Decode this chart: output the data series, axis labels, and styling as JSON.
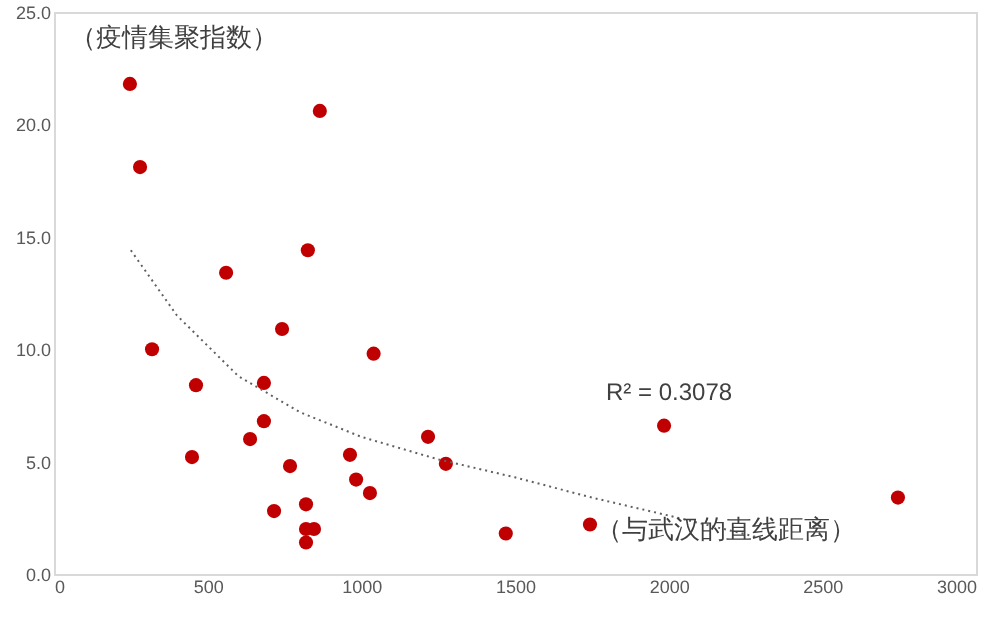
{
  "chart_data": {
    "type": "scatter",
    "xlabel": "（与武汉的直线距离）",
    "ylabel": "（疫情集聚指数）",
    "annotations": [
      "R² = 0.3078"
    ],
    "xlim": [
      0,
      3000
    ],
    "xticks": [
      0,
      500,
      1000,
      1500,
      2000,
      2500,
      3000
    ],
    "ylim": [
      0,
      25
    ],
    "yticks": [
      {
        "value": 0,
        "label": "0.0"
      },
      {
        "value": 5,
        "label": "5.0"
      },
      {
        "value": 10,
        "label": "10.0"
      },
      {
        "value": 15,
        "label": "15.0"
      },
      {
        "value": 20,
        "label": "20.0"
      },
      {
        "value": 25,
        "label": "25.0"
      }
    ],
    "grid": false,
    "series": [
      {
        "color": "#c00000",
        "marker": "circle",
        "x": [
          247,
          280,
          865,
          826,
          560,
          319,
          742,
          1040,
          462,
          683,
          683,
          638,
          449,
          768,
          963,
          983,
          1028,
          716,
          820,
          820,
          846,
          820,
          1217,
          1275,
          1470,
          1744,
          1985,
          2746
        ],
        "values": [
          21.8,
          18.1,
          20.6,
          14.4,
          13.4,
          10.0,
          10.9,
          9.8,
          8.4,
          8.5,
          6.8,
          6.0,
          5.2,
          4.8,
          5.3,
          4.2,
          3.6,
          2.8,
          3.1,
          2.0,
          2.0,
          1.4,
          6.1,
          4.9,
          1.8,
          2.2,
          6.6,
          3.4
        ]
      },
      {
        "type": "line",
        "color": "#606060",
        "line_style": "dotted",
        "x": [
          250,
          400,
          600,
          800,
          1000,
          1250,
          1500,
          1750,
          2000,
          2300
        ],
        "values": [
          14.4,
          11.5,
          8.8,
          7.2,
          6.1,
          5.1,
          4.3,
          3.4,
          2.6,
          1.6
        ]
      }
    ]
  }
}
